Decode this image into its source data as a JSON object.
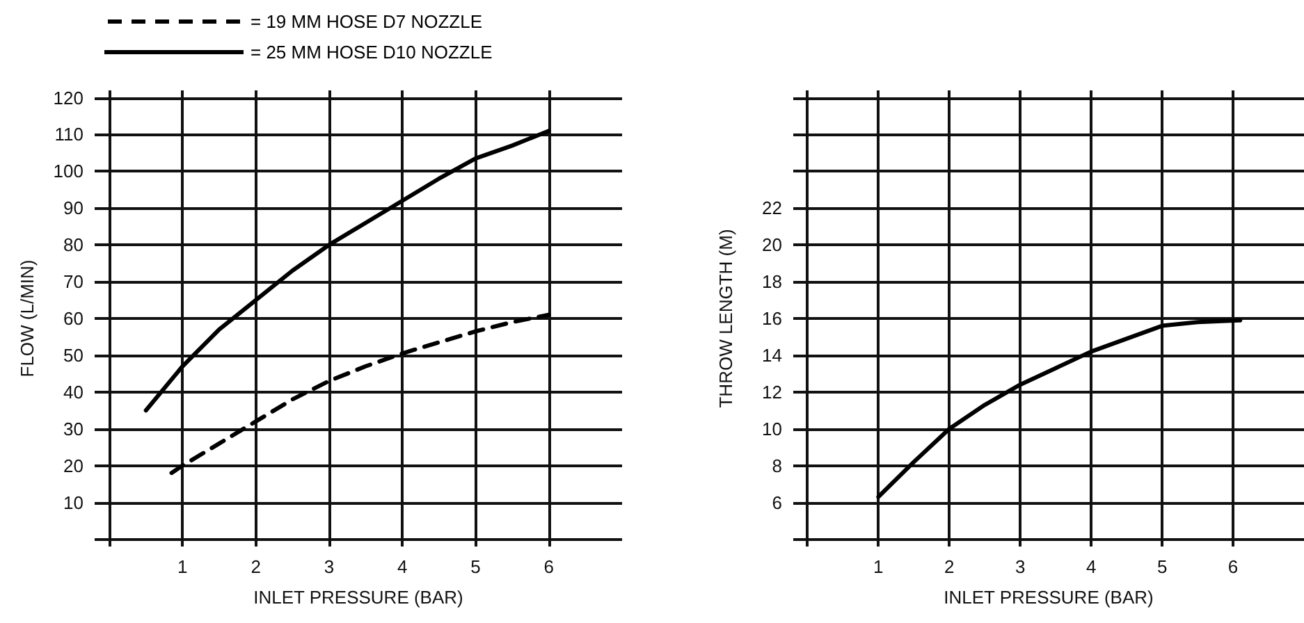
{
  "chart_data": [
    {
      "type": "line",
      "xlabel": "INLET PRESSURE (BAR)",
      "ylabel": "FLOW (L/MIN)",
      "xlim": [
        -0.2,
        7
      ],
      "ylim": [
        -2,
        122
      ],
      "xticks": [
        {
          "value": 0,
          "label": null
        },
        1,
        2,
        3,
        4,
        5,
        6
      ],
      "yticks": [
        {
          "value": 0,
          "label": null
        },
        10,
        20,
        30,
        40,
        50,
        60,
        70,
        80,
        90,
        100,
        110,
        120
      ],
      "grid": true,
      "legend": "top left",
      "marker": "none",
      "series": [
        {
          "name": "= 19 MM HOSE D7 NOZZLE",
          "color": "#000000",
          "line_style": "dashed",
          "x": [
            0.85,
            1,
            1.5,
            2,
            2.5,
            3,
            3.5,
            4,
            4.5,
            5,
            5.5,
            6
          ],
          "values": [
            18,
            20,
            26,
            32,
            38,
            43,
            47,
            50.5,
            53.5,
            56.5,
            59,
            61
          ]
        },
        {
          "name": "= 25 MM HOSE D10 NOZZLE",
          "color": "#000000",
          "line_style": "solid",
          "x": [
            0.5,
            1,
            1.5,
            2,
            2.5,
            3,
            3.5,
            4,
            4.5,
            5,
            5.5,
            6
          ],
          "values": [
            35,
            47,
            57,
            65,
            73,
            80,
            86,
            92,
            98,
            103.5,
            107,
            111
          ]
        }
      ]
    },
    {
      "type": "line",
      "xlabel": "INLET PRESSURE (BAR)",
      "ylabel": "THROW LENGTH (M)",
      "xlim": [
        -0.2,
        7
      ],
      "ylim": [
        3.6,
        28.4
      ],
      "xticks": [
        {
          "value": 0,
          "label": null
        },
        1,
        2,
        3,
        4,
        5,
        6
      ],
      "yticks": [
        {
          "value": 4,
          "label": null
        },
        6,
        8,
        10,
        12,
        14,
        16,
        18,
        20,
        22,
        {
          "value": 24,
          "label": null
        },
        {
          "value": 26,
          "label": null
        },
        {
          "value": 28,
          "label": null
        }
      ],
      "grid": true,
      "marker": "none",
      "series": [
        {
          "color": "#000000",
          "line_style": "solid",
          "x": [
            1,
            1.5,
            2,
            2.5,
            3,
            3.5,
            4,
            4.5,
            5,
            5.5,
            6.1
          ],
          "values": [
            6.3,
            8.2,
            10,
            11.3,
            12.4,
            13.3,
            14.2,
            14.9,
            15.6,
            15.8,
            15.9
          ]
        }
      ]
    }
  ]
}
